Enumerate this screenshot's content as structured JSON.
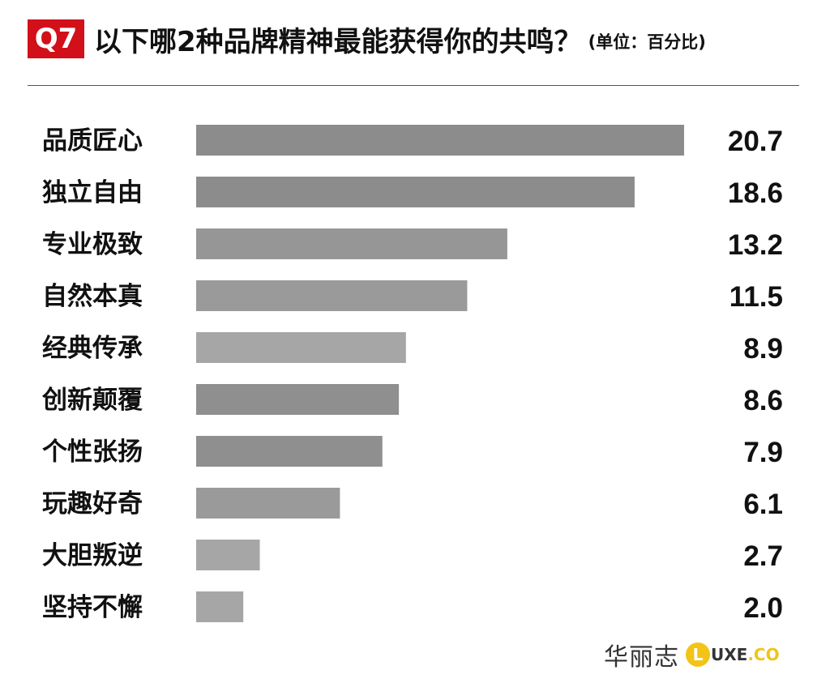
{
  "header": {
    "badge": "Q7",
    "title": "以下哪2种品牌精神最能获得你的共鸣？",
    "unit": "(单位：百分比)"
  },
  "chart_data": {
    "type": "bar",
    "orientation": "horizontal",
    "categories": [
      "品质匠心",
      "独立自由",
      "专业极致",
      "自然本真",
      "经典传承",
      "创新颠覆",
      "个性张扬",
      "玩趣好奇",
      "大胆叛逆",
      "坚持不懈"
    ],
    "values": [
      20.7,
      18.6,
      13.2,
      11.5,
      8.9,
      8.6,
      7.9,
      6.1,
      2.7,
      2.0
    ],
    "value_labels": [
      "20.7",
      "18.6",
      "13.2",
      "11.5",
      "8.9",
      "8.6",
      "7.9",
      "6.1",
      "2.7",
      "2.0"
    ],
    "bar_colors": [
      "#8c8c8c",
      "#8c8c8c",
      "#969696",
      "#9a9a9a",
      "#a6a6a6",
      "#8f8f8f",
      "#8f8f8f",
      "#9a9a9a",
      "#a6a6a6",
      "#a6a6a6"
    ],
    "xlim": [
      0,
      20.7
    ],
    "grid": false,
    "legend": "none"
  },
  "brand": {
    "name_cn": "华丽志",
    "logo_letter": "L",
    "logo_rest": "UXE",
    "logo_suffix": ".CO",
    "logo_color": "#f2c417"
  },
  "colors": {
    "badge": "#d2101a",
    "divider": "#555555",
    "text": "#111111"
  }
}
